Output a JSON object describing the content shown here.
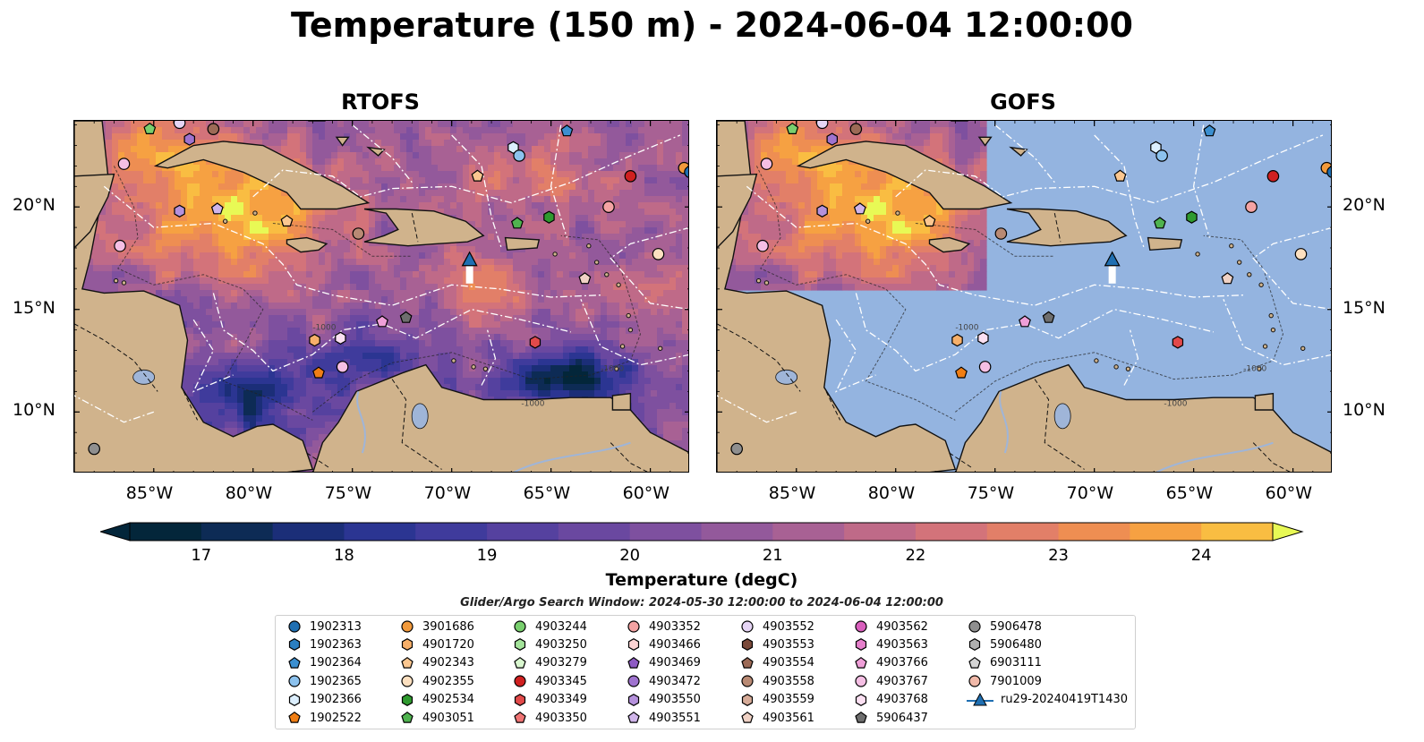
{
  "title": "Temperature (150 m) - 2024-06-04 12:00:00",
  "panels": [
    {
      "id": "rtofs",
      "title": "RTOFS"
    },
    {
      "id": "gofs",
      "title": "GOFS"
    }
  ],
  "lat_labels": [
    "20°N",
    "15°N",
    "10°N"
  ],
  "lon_labels": [
    "85°W",
    "80°W",
    "75°W",
    "70°W",
    "65°W",
    "60°W"
  ],
  "colorbar": {
    "label": "Temperature (degC)",
    "ticks": [
      "17",
      "18",
      "19",
      "20",
      "21",
      "22",
      "23",
      "24"
    ],
    "min": 16.5,
    "max": 24.5,
    "extend": "both"
  },
  "search_window": "Glider/Argo Search Window: 2024-05-30 12:00:00 to 2024-06-04 12:00:00",
  "contour_labels": [
    "-1000"
  ],
  "legend": [
    {
      "label": "1902313",
      "marker": "circle",
      "color": "#1f6fb2"
    },
    {
      "label": "1902363",
      "marker": "hexagon",
      "color": "#2a7fc1"
    },
    {
      "label": "1902364",
      "marker": "pentagon",
      "color": "#3b8fd0"
    },
    {
      "label": "1902365",
      "marker": "circle",
      "color": "#8cc2ee"
    },
    {
      "label": "1902366",
      "marker": "hexagon",
      "color": "#dcefff"
    },
    {
      "label": "1902522",
      "marker": "pentagon",
      "color": "#f07e14"
    },
    {
      "label": "3901686",
      "marker": "circle",
      "color": "#f29a3c"
    },
    {
      "label": "4901720",
      "marker": "hexagon",
      "color": "#f7b06a"
    },
    {
      "label": "4902343",
      "marker": "pentagon",
      "color": "#fbc790"
    },
    {
      "label": "4902355",
      "marker": "circle",
      "color": "#fde0c0"
    },
    {
      "label": "4902534",
      "marker": "hexagon",
      "color": "#2f9a2f"
    },
    {
      "label": "4903051",
      "marker": "pentagon",
      "color": "#4fb34f"
    },
    {
      "label": "4903244",
      "marker": "circle",
      "color": "#79cf6e"
    },
    {
      "label": "4903250",
      "marker": "hexagon",
      "color": "#a3e39a"
    },
    {
      "label": "4903279",
      "marker": "pentagon",
      "color": "#d9f7cf"
    },
    {
      "label": "4903345",
      "marker": "circle",
      "color": "#d02020"
    },
    {
      "label": "4903349",
      "marker": "hexagon",
      "color": "#e24a4a"
    },
    {
      "label": "4903350",
      "marker": "pentagon",
      "color": "#f07474"
    },
    {
      "label": "4903352",
      "marker": "circle",
      "color": "#f4a3a3"
    },
    {
      "label": "4903466",
      "marker": "hexagon",
      "color": "#fbd2d2"
    },
    {
      "label": "4903469",
      "marker": "pentagon",
      "color": "#8e5bc4"
    },
    {
      "label": "4903472",
      "marker": "circle",
      "color": "#9f73cf"
    },
    {
      "label": "4903550",
      "marker": "hexagon",
      "color": "#b591dc"
    },
    {
      "label": "4903551",
      "marker": "pentagon",
      "color": "#d0b5ea"
    },
    {
      "label": "4903552",
      "marker": "circle",
      "color": "#e6d5f5"
    },
    {
      "label": "4903553",
      "marker": "hexagon",
      "color": "#7b4a3a"
    },
    {
      "label": "4903554",
      "marker": "pentagon",
      "color": "#9c6a56"
    },
    {
      "label": "4903558",
      "marker": "circle",
      "color": "#b98a74"
    },
    {
      "label": "4903559",
      "marker": "hexagon",
      "color": "#d6ab98"
    },
    {
      "label": "4903561",
      "marker": "pentagon",
      "color": "#f0d2c5"
    },
    {
      "label": "4903562",
      "marker": "circle",
      "color": "#d95fbd"
    },
    {
      "label": "4903563",
      "marker": "hexagon",
      "color": "#e57fcb"
    },
    {
      "label": "4903766",
      "marker": "pentagon",
      "color": "#ef9fd8"
    },
    {
      "label": "4903767",
      "marker": "circle",
      "color": "#f5bfe4"
    },
    {
      "label": "4903768",
      "marker": "hexagon",
      "color": "#fbe0f2"
    },
    {
      "label": "5906437",
      "marker": "pentagon",
      "color": "#6e6e6e"
    },
    {
      "label": "5906478",
      "marker": "circle",
      "color": "#8f8f8f"
    },
    {
      "label": "5906480",
      "marker": "hexagon",
      "color": "#b0b0b0"
    },
    {
      "label": "6903111",
      "marker": "pentagon",
      "color": "#d4d4d4"
    },
    {
      "label": "7901009",
      "marker": "circle",
      "color": "#f1b9a9"
    },
    {
      "label": "ru29-20240419T1430",
      "marker": "triangle-line",
      "color": "#1f6fb2"
    }
  ],
  "floats": [
    {
      "lon": -85.2,
      "lat": 23.8,
      "marker": "pentagon",
      "color": "#79cf6e"
    },
    {
      "lon": -83.7,
      "lat": 24.1,
      "marker": "circle",
      "color": "#e6d5f5"
    },
    {
      "lon": -83.2,
      "lat": 23.3,
      "marker": "hexagon",
      "color": "#9f73cf"
    },
    {
      "lon": -82.0,
      "lat": 23.8,
      "marker": "circle",
      "color": "#9c6a56"
    },
    {
      "lon": -86.5,
      "lat": 22.1,
      "marker": "circle",
      "color": "#f5bfe4"
    },
    {
      "lon": -83.7,
      "lat": 19.8,
      "marker": "hexagon",
      "color": "#b591dc"
    },
    {
      "lon": -81.8,
      "lat": 19.9,
      "marker": "pentagon",
      "color": "#d0b5ea"
    },
    {
      "lon": -78.3,
      "lat": 19.3,
      "marker": "pentagon",
      "color": "#fbc790"
    },
    {
      "lon": -86.7,
      "lat": 18.1,
      "marker": "circle",
      "color": "#f5bfe4"
    },
    {
      "lon": -74.7,
      "lat": 18.7,
      "marker": "circle",
      "color": "#b98a74"
    },
    {
      "lon": -66.9,
      "lat": 22.9,
      "marker": "hexagon",
      "color": "#dcefff"
    },
    {
      "lon": -66.6,
      "lat": 22.5,
      "marker": "circle",
      "color": "#8cc2ee"
    },
    {
      "lon": -64.2,
      "lat": 23.7,
      "marker": "pentagon",
      "color": "#3b8fd0"
    },
    {
      "lon": -68.7,
      "lat": 21.5,
      "marker": "pentagon",
      "color": "#fbc790"
    },
    {
      "lon": -66.7,
      "lat": 19.2,
      "marker": "pentagon",
      "color": "#4fb34f"
    },
    {
      "lon": -65.1,
      "lat": 19.5,
      "marker": "hexagon",
      "color": "#2f9a2f"
    },
    {
      "lon": -62.1,
      "lat": 20.0,
      "marker": "circle",
      "color": "#f4a3a3"
    },
    {
      "lon": -61.0,
      "lat": 21.5,
      "marker": "circle",
      "color": "#d02020"
    },
    {
      "lon": -58.3,
      "lat": 21.9,
      "marker": "circle",
      "color": "#f29a3c"
    },
    {
      "lon": -58.0,
      "lat": 21.7,
      "marker": "circle",
      "color": "#1f6fb2"
    },
    {
      "lon": -59.6,
      "lat": 17.7,
      "marker": "circle",
      "color": "#fde0c0"
    },
    {
      "lon": -63.3,
      "lat": 16.5,
      "marker": "pentagon",
      "color": "#f0d2c5"
    },
    {
      "lon": -73.5,
      "lat": 14.4,
      "marker": "pentagon",
      "color": "#ef9fd8"
    },
    {
      "lon": -72.3,
      "lat": 14.6,
      "marker": "pentagon",
      "color": "#6e6e6e"
    },
    {
      "lon": -75.6,
      "lat": 13.6,
      "marker": "hexagon",
      "color": "#fbe0f2"
    },
    {
      "lon": -76.9,
      "lat": 13.5,
      "marker": "hexagon",
      "color": "#f7b06a"
    },
    {
      "lon": -76.7,
      "lat": 11.9,
      "marker": "pentagon",
      "color": "#f07e14"
    },
    {
      "lon": -75.5,
      "lat": 12.2,
      "marker": "circle",
      "color": "#f5bfe4"
    },
    {
      "lon": -65.8,
      "lat": 13.4,
      "marker": "hexagon",
      "color": "#e24a4a"
    },
    {
      "lon": -88.0,
      "lat": 8.2,
      "marker": "circle",
      "color": "#8f8f8f"
    }
  ],
  "glider": {
    "lon": -69.1,
    "lat": 17.4,
    "color": "#1f6fb2"
  },
  "map_extent": {
    "lon_min": -89.0,
    "lon_max": -58.0,
    "lat_min": 7.0,
    "lat_max": 24.2
  }
}
